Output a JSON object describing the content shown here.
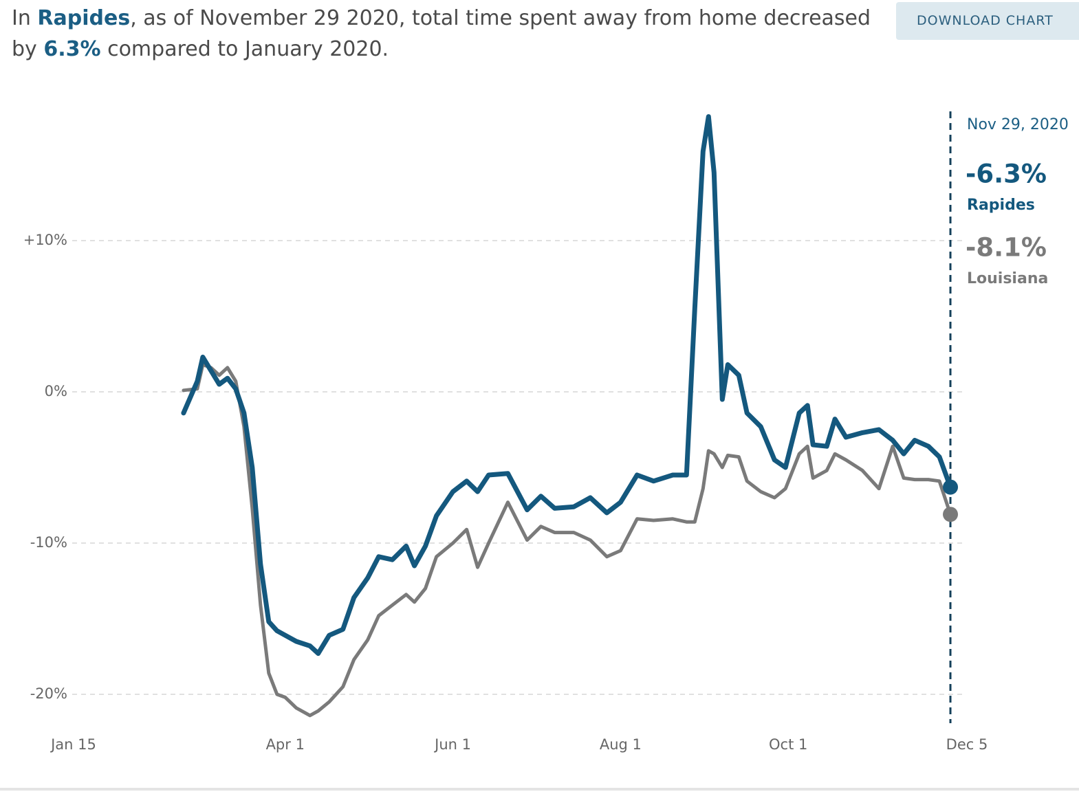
{
  "chart_data": {
    "type": "line",
    "title": [
      "In ",
      "Rapides",
      ", as of November 29 2020, total time spent away from home decreased by ",
      "6.3%",
      " compared to January 2020."
    ],
    "button": "DOWNLOAD CHART",
    "x": [
      "Feb 24",
      "Feb 29",
      "Mar 2",
      "Mar 5",
      "Mar 8",
      "Mar 11",
      "Mar 14",
      "Mar 17",
      "Mar 20",
      "Mar 23",
      "Mar 26",
      "Mar 29",
      "Apr 1",
      "Apr 5",
      "Apr 10",
      "Apr 13",
      "Apr 17",
      "Apr 22",
      "Apr 26",
      "May 1",
      "May 5",
      "May 10",
      "May 15",
      "May 18",
      "May 22",
      "May 26",
      "Jun 1",
      "Jun 6",
      "Jun 10",
      "Jun 14",
      "Jun 21",
      "Jun 28",
      "Jul 3",
      "Jul 8",
      "Jul 15",
      "Jul 21",
      "Jul 27",
      "Aug 1",
      "Aug 7",
      "Aug 13",
      "Aug 20",
      "Aug 25",
      "Aug 28",
      "Aug 31",
      "Sep 2",
      "Sep 4",
      "Sep 7",
      "Sep 9",
      "Sep 13",
      "Sep 16",
      "Sep 21",
      "Sep 26",
      "Sep 30",
      "Oct 5",
      "Oct 8",
      "Oct 10",
      "Oct 15",
      "Oct 18",
      "Oct 22",
      "Oct 28",
      "Nov 3",
      "Nov 8",
      "Nov 12",
      "Nov 16",
      "Nov 21",
      "Nov 25",
      "Nov 29"
    ],
    "series": [
      {
        "name": "Rapides",
        "color": "#14587e",
        "end_label": "-6.3%",
        "values": [
          -1.4,
          0.7,
          2.3,
          1.4,
          0.5,
          0.9,
          0.2,
          -1.4,
          -5,
          -11.4,
          -15.2,
          -15.8,
          -16.1,
          -16.5,
          -16.8,
          -17.3,
          -16.1,
          -15.7,
          -13.6,
          -12.3,
          -10.9,
          -11.1,
          -10.2,
          -11.5,
          -10.2,
          -8.2,
          -6.6,
          -5.9,
          -6.6,
          -5.5,
          -5.4,
          -7.8,
          -6.9,
          -7.7,
          -7.6,
          -7.0,
          -8.0,
          -7.3,
          -5.5,
          -5.9,
          -5.5,
          -5.5,
          5.5,
          15.9,
          18.2,
          14.5,
          -0.5,
          1.8,
          1.1,
          -1.4,
          -2.3,
          -4.5,
          -5.0,
          -1.4,
          -0.9,
          -3.5,
          -3.6,
          -1.8,
          -3.0,
          -2.7,
          -2.5,
          -3.2,
          -4.1,
          -3.2,
          -3.6,
          -4.3,
          -6.3
        ]
      },
      {
        "name": "Louisiana",
        "color": "#7a7a7a",
        "end_label": "-8.1%",
        "values": [
          0.1,
          0.2,
          1.8,
          1.6,
          1.1,
          1.6,
          0.7,
          -2.3,
          -7.7,
          -14.1,
          -18.6,
          -20.0,
          -20.2,
          -20.9,
          -21.4,
          -21.1,
          -20.5,
          -19.5,
          -17.7,
          -16.4,
          -14.8,
          -14.1,
          -13.4,
          -13.9,
          -13.0,
          -10.9,
          -10.0,
          -9.1,
          -11.6,
          -10.0,
          -7.3,
          -9.8,
          -8.9,
          -9.3,
          -9.3,
          -9.8,
          -10.9,
          -10.5,
          -8.4,
          -8.5,
          -8.4,
          -8.6,
          -8.6,
          -6.4,
          -3.9,
          -4.1,
          -5.0,
          -4.2,
          -4.3,
          -5.9,
          -6.6,
          -7.0,
          -6.4,
          -4.1,
          -3.6,
          -5.7,
          -5.2,
          -4.1,
          -4.5,
          -5.2,
          -6.4,
          -3.6,
          -5.7,
          -5.8,
          -5.8,
          -5.9,
          -8.1
        ]
      }
    ],
    "annotation_date": "Nov 29, 2020",
    "xlim": [
      "Jan 15",
      "Dec 5"
    ],
    "xticks": [
      "Jan 15",
      "Apr 1",
      "Jun 1",
      "Aug 1",
      "Oct 1",
      "Dec 5"
    ],
    "ylim": [
      -22,
      19
    ],
    "yticks": [
      {
        "value": 10,
        "label": "+10%"
      },
      {
        "value": 0,
        "label": "0%"
      },
      {
        "value": -10,
        "label": "-10%"
      },
      {
        "value": -20,
        "label": "-20%"
      }
    ],
    "grid": true
  }
}
